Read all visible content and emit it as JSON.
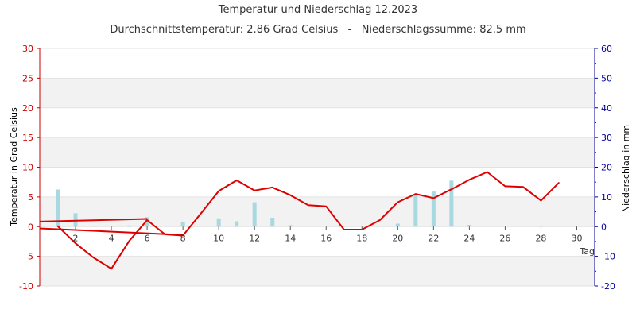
{
  "chart_data": {
    "type": "bar",
    "title": "Temperatur und Niederschlag 12.2023",
    "subtitle": "Durchschnittstemperatur: 2.86 Grad Celsius   -   Niederschlagssumme: 82.5 mm",
    "xlabel": "Tag",
    "ylabel_left": "Temperatur in Grad Celsius",
    "ylabel_right": "Niederschlag in mm",
    "xlim": [
      0,
      31
    ],
    "x_ticks": [
      2,
      4,
      6,
      8,
      10,
      12,
      14,
      16,
      18,
      20,
      22,
      24,
      26,
      28,
      30
    ],
    "ylim_left": [
      -10,
      30
    ],
    "y_ticks_left": [
      -10,
      -5,
      0,
      5,
      10,
      15,
      20,
      25,
      30
    ],
    "ylim_right": [
      -20,
      60
    ],
    "y_ticks_right": [
      -20,
      -10,
      0,
      10,
      20,
      30,
      40,
      50,
      60
    ],
    "grid": true,
    "colors": {
      "temperature_line": "#dd0000",
      "precipitation_bar": "#a8d8e0",
      "left_axis": "#cc0000",
      "right_axis": "#000099",
      "band": "#f2f2f2"
    },
    "series": [
      {
        "type": "line",
        "axis": "left",
        "x": [
          1,
          2,
          3,
          4,
          5,
          6,
          7,
          8,
          9,
          10,
          11,
          12,
          13,
          14,
          15,
          16,
          17,
          18,
          19,
          20,
          21,
          22,
          23,
          24,
          25,
          26,
          27,
          28,
          29
        ],
        "values": [
          0.1,
          -2.8,
          -5.2,
          -7.1,
          -2.4,
          1.1,
          -1.3,
          -1.5,
          2.2,
          6.0,
          7.8,
          6.1,
          6.6,
          5.3,
          3.6,
          3.4,
          -0.5,
          -0.5,
          1.1,
          4.1,
          5.5,
          4.8,
          6.3,
          7.9,
          9.2,
          6.8,
          6.7,
          4.4,
          7.4
        ]
      },
      {
        "type": "bar",
        "axis": "right",
        "x": [
          1,
          2,
          3,
          4,
          5,
          6,
          7,
          8,
          9,
          10,
          11,
          12,
          13,
          14,
          15,
          16,
          17,
          18,
          19,
          20,
          21,
          22,
          23,
          24,
          25,
          26,
          27,
          28,
          29
        ],
        "values": [
          12.5,
          4.5,
          0,
          0,
          0.4,
          3.2,
          0,
          1.7,
          0,
          2.8,
          1.8,
          8.2,
          3.0,
          0.5,
          0,
          0,
          0,
          0,
          0,
          1.0,
          10.8,
          11.8,
          15.5,
          0.6,
          0,
          0,
          0,
          0.2,
          0
        ]
      }
    ],
    "overlay_line_left": {
      "x": [
        0,
        8
      ],
      "values": [
        -0.3,
        -1.4
      ]
    },
    "overlay_line_right": {
      "x": [
        0,
        6
      ],
      "values": [
        1.7,
        2.6
      ]
    }
  }
}
